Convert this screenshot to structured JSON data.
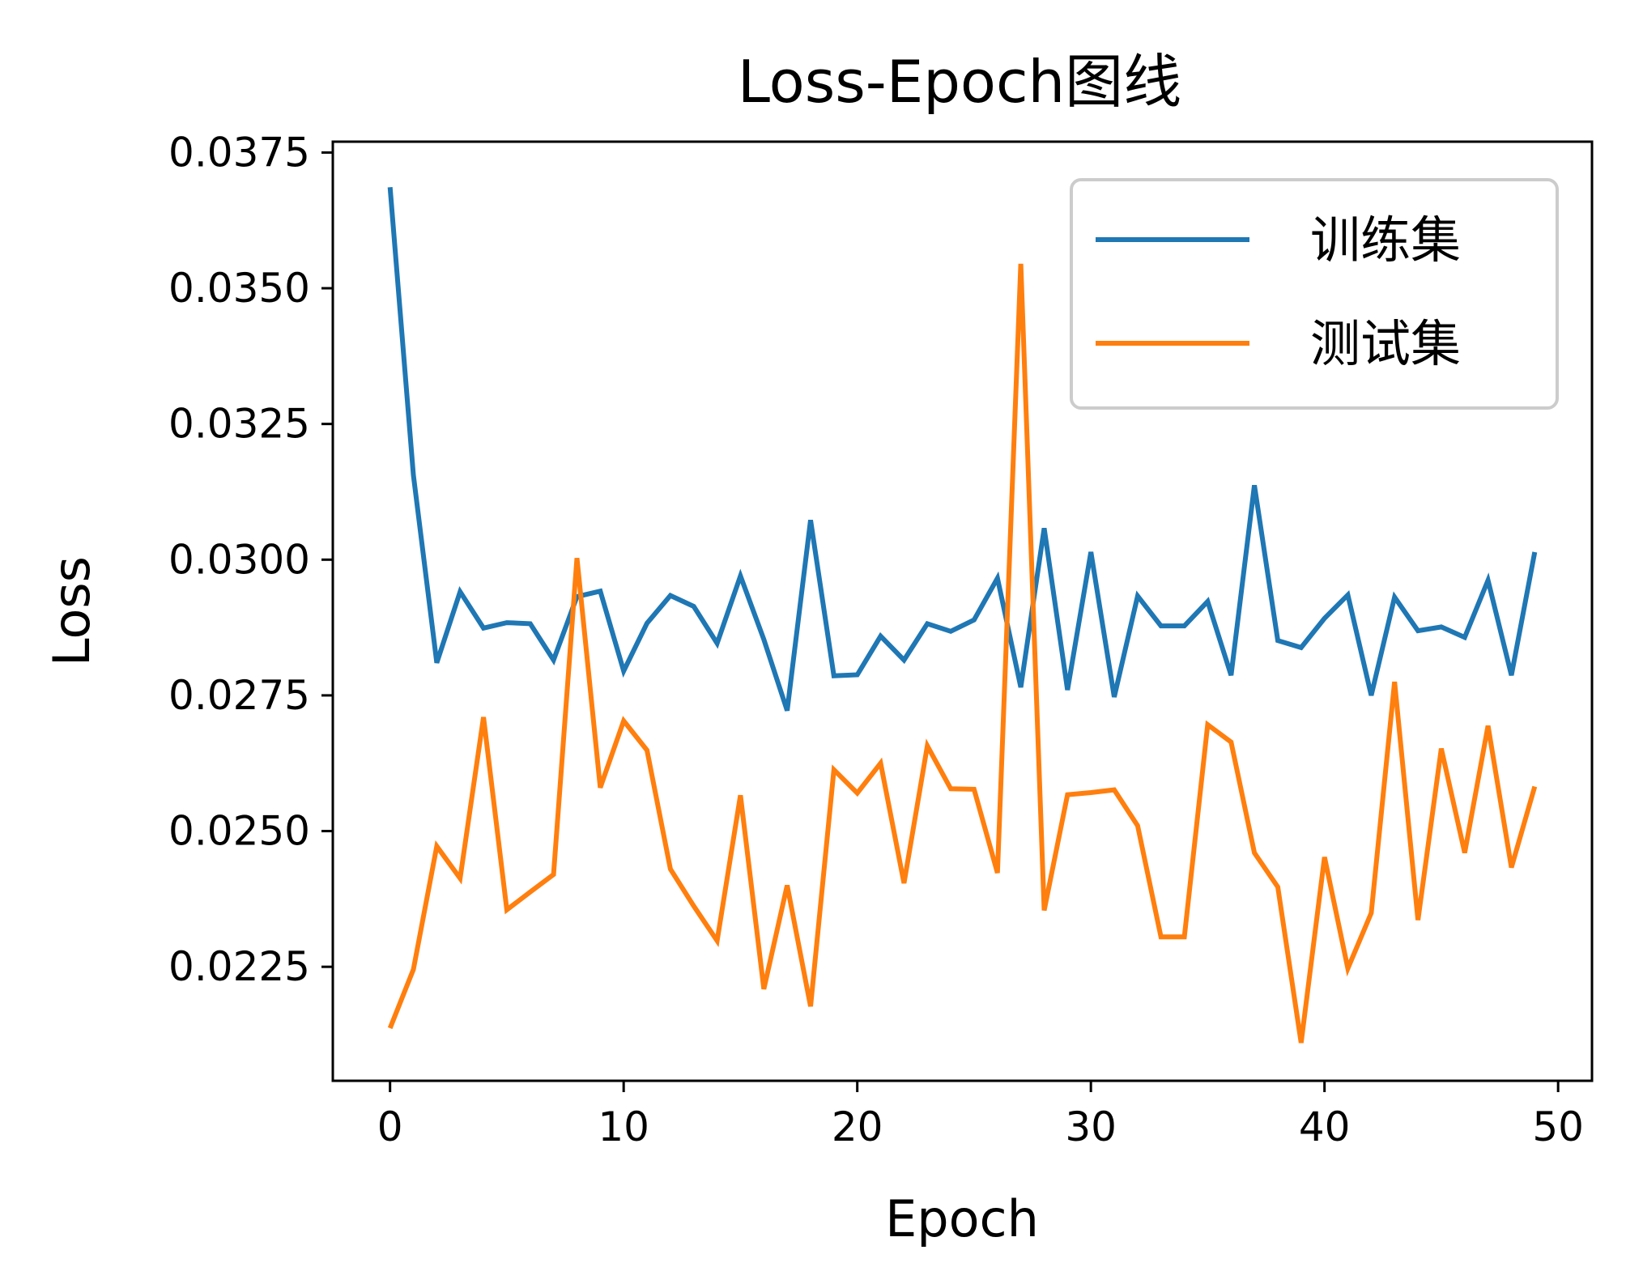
{
  "chart_data": {
    "type": "line",
    "title": "Loss-Epoch图线",
    "xlabel": "Epoch",
    "ylabel": "Loss",
    "xlim": [
      -2.45,
      51.45
    ],
    "ylim": [
      0.0204,
      0.0377
    ],
    "xticks": [
      0,
      10,
      20,
      30,
      40,
      50
    ],
    "xtick_labels": [
      "0",
      "10",
      "20",
      "30",
      "40",
      "50"
    ],
    "yticks": [
      0.0225,
      0.025,
      0.0275,
      0.03,
      0.0325,
      0.035,
      0.0375
    ],
    "ytick_labels": [
      "0.0225",
      "0.0250",
      "0.0275",
      "0.0300",
      "0.0325",
      "0.0350",
      "0.0375"
    ],
    "grid": false,
    "legend_position": "top-right",
    "x": [
      0,
      1,
      2,
      3,
      4,
      5,
      6,
      7,
      8,
      9,
      10,
      11,
      12,
      13,
      14,
      15,
      16,
      17,
      18,
      19,
      20,
      21,
      22,
      23,
      24,
      25,
      26,
      27,
      28,
      29,
      30,
      31,
      32,
      33,
      34,
      35,
      36,
      37,
      38,
      39,
      40,
      41,
      42,
      43,
      44,
      45,
      46,
      47,
      48,
      49
    ],
    "series": [
      {
        "name": "训练集",
        "color": "#1f77b4",
        "values": [
          0.03686,
          0.03156,
          0.0281,
          0.02941,
          0.02874,
          0.02884,
          0.02882,
          0.02815,
          0.02932,
          0.02942,
          0.02795,
          0.02883,
          0.02934,
          0.02914,
          0.02846,
          0.0297,
          0.02853,
          0.02722,
          0.03073,
          0.02786,
          0.02788,
          0.02859,
          0.02815,
          0.02882,
          0.02868,
          0.02889,
          0.02966,
          0.02765,
          0.03058,
          0.0276,
          0.03014,
          0.02747,
          0.02933,
          0.02878,
          0.02878,
          0.02923,
          0.02787,
          0.03137,
          0.02851,
          0.02838,
          0.02892,
          0.02935,
          0.0275,
          0.02931,
          0.02869,
          0.02876,
          0.02857,
          0.02962,
          0.02787,
          0.03014
        ]
      },
      {
        "name": "测试集",
        "color": "#ff7f0e",
        "values": [
          0.02137,
          0.02245,
          0.02472,
          0.02413,
          0.0271,
          0.02355,
          0.02388,
          0.0242,
          0.03003,
          0.0258,
          0.02703,
          0.02649,
          0.0243,
          0.02362,
          0.02298,
          0.02566,
          0.02209,
          0.024,
          0.02177,
          0.02613,
          0.0257,
          0.02625,
          0.02404,
          0.02657,
          0.02578,
          0.02577,
          0.02423,
          0.03545,
          0.02354,
          0.02567,
          0.02571,
          0.02576,
          0.0251,
          0.02305,
          0.02305,
          0.02696,
          0.02664,
          0.0246,
          0.02397,
          0.0211,
          0.02452,
          0.02247,
          0.02349,
          0.02775,
          0.02336,
          0.02652,
          0.0246,
          0.02694,
          0.02433,
          0.02582
        ]
      }
    ]
  }
}
